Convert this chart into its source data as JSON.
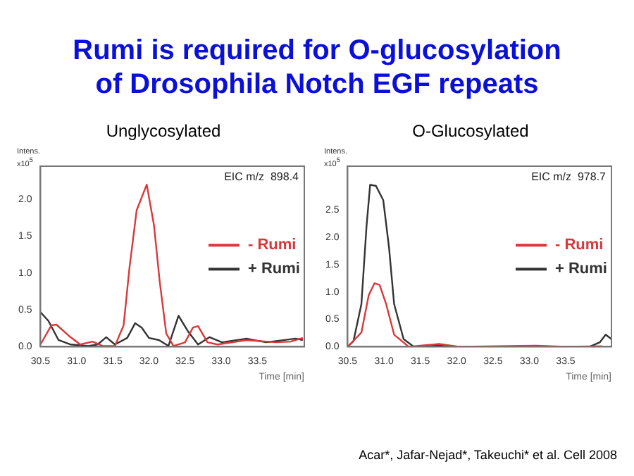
{
  "chart_data": [
    {
      "type": "other",
      "title": "Rumi is required for O-glucosylation of Drosophila Notch EGF repeats",
      "annotations": [
        "Acar*, Jafar-Nejad*, Takeuchi* et al. Cell 2008"
      ]
    },
    {
      "type": "line",
      "title": "Unglycosylated",
      "xlabel": "Time [min]",
      "ylabel": "Intens. x10$^{5}$",
      "annotations": [
        "EIC m/z  898.4"
      ],
      "legend": "right",
      "grid": false,
      "marker": "none",
      "line_style": "solid",
      "xlim": [
        30.5,
        34.15
      ],
      "xticks": [
        30.5,
        {
          "value": 31,
          "label": "31.0"
        },
        31.5,
        {
          "value": 32,
          "label": "32.0"
        },
        32.5,
        {
          "value": 33,
          "label": "33.0"
        },
        33.5
      ],
      "ylim": [
        0,
        2.45
      ],
      "yticks": [
        {
          "value": 0,
          "label": "0.0"
        },
        0.5,
        {
          "value": 1,
          "label": "1.0"
        },
        1.5,
        {
          "value": 2,
          "label": "2.0"
        }
      ],
      "series": [
        {
          "name": "- Rumi",
          "color": "#d9383a",
          "x": [
            30.5,
            30.65,
            30.72,
            30.89,
            31.05,
            31.22,
            31.36,
            31.53,
            31.65,
            31.73,
            31.83,
            31.97,
            32.07,
            32.15,
            32.24,
            32.34,
            32.5,
            32.61,
            32.68,
            32.81,
            32.95,
            33.35,
            33.76,
            33.96,
            34.13
          ],
          "values": [
            0.03,
            0.29,
            0.3,
            0.15,
            0.03,
            0.07,
            0.01,
            0.01,
            0.29,
            1.06,
            1.85,
            2.2,
            1.65,
            0.88,
            0.18,
            0.01,
            0.06,
            0.26,
            0.28,
            0.06,
            0.03,
            0.09,
            0.06,
            0.07,
            0.12
          ]
        },
        {
          "name": "+ Rumi",
          "color": "#333333",
          "x": [
            30.5,
            30.61,
            30.75,
            30.92,
            31.16,
            31.29,
            31.41,
            31.53,
            31.7,
            31.81,
            31.9,
            32.0,
            32.14,
            32.27,
            32.41,
            32.54,
            32.68,
            32.84,
            33.01,
            33.35,
            33.62,
            34.03,
            34.13
          ],
          "values": [
            0.47,
            0.35,
            0.09,
            0.03,
            0.01,
            0.03,
            0.13,
            0.03,
            0.12,
            0.32,
            0.26,
            0.12,
            0.09,
            0.01,
            0.42,
            0.21,
            0.03,
            0.13,
            0.06,
            0.11,
            0.06,
            0.11,
            0.09
          ]
        }
      ]
    },
    {
      "type": "line",
      "title": "O-Glucosylated",
      "xlabel": "Time [min]",
      "ylabel": "Intens. x10$^{5}$",
      "annotations": [
        "EIC m/z  978.7"
      ],
      "legend": "right",
      "grid": false,
      "marker": "none",
      "line_style": "solid",
      "xlim": [
        30.5,
        34.13
      ],
      "xticks": [
        30.5,
        {
          "value": 31,
          "label": "31.0"
        },
        31.5,
        {
          "value": 32,
          "label": "32.0"
        },
        32.5,
        {
          "value": 33,
          "label": "33.0"
        },
        33.5
      ],
      "ylim": [
        0,
        3.3
      ],
      "yticks": [
        {
          "value": 0,
          "label": "0.0"
        },
        0.5,
        {
          "value": 1,
          "label": "1.0"
        },
        1.5,
        {
          "value": 2,
          "label": "2.0"
        },
        2.5
      ],
      "series": [
        {
          "name": "- Rumi",
          "color": "#d9383a",
          "x": [
            30.5,
            30.69,
            30.79,
            30.87,
            30.94,
            31.03,
            31.14,
            31.34,
            31.76,
            32.03,
            33.07,
            33.49,
            34.0
          ],
          "values": [
            0,
            0.26,
            0.94,
            1.16,
            1.13,
            0.78,
            0.22,
            0,
            0.05,
            0,
            0.02,
            0,
            0.01
          ]
        },
        {
          "name": "+ Rumi",
          "color": "#333333",
          "x": [
            30.5,
            30.58,
            30.69,
            30.76,
            30.81,
            30.89,
            30.99,
            31.07,
            31.14,
            31.27,
            31.41,
            31.76,
            32.03,
            32.8,
            33.83,
            33.97,
            34.05,
            34.13
          ],
          "values": [
            0,
            0.1,
            0.78,
            2.2,
            2.96,
            2.94,
            2.68,
            1.81,
            0.78,
            0.14,
            0,
            0.02,
            0,
            0,
            0,
            0.08,
            0.22,
            0.14
          ]
        }
      ]
    }
  ]
}
